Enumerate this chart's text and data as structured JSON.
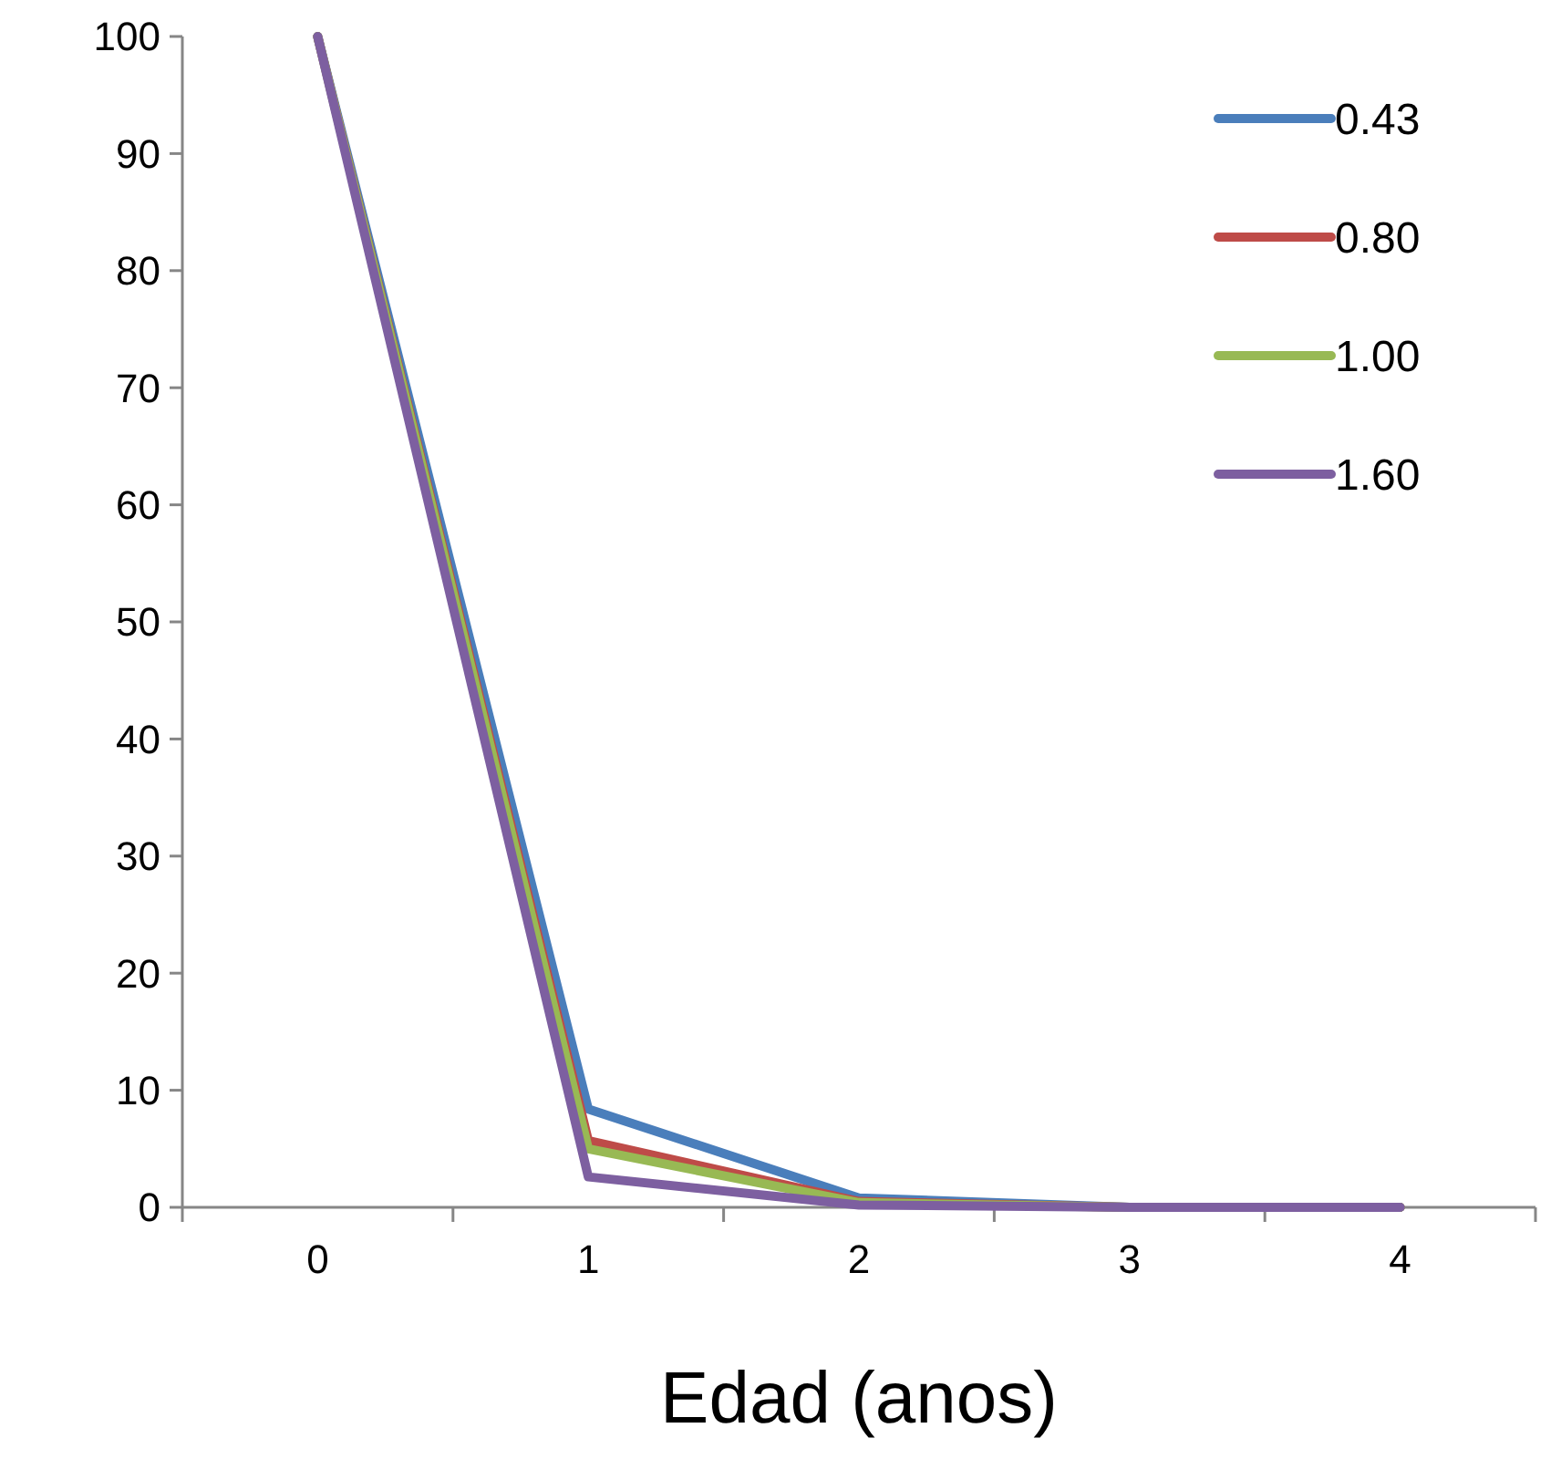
{
  "chart_data": {
    "type": "line",
    "xlabel": "Edad (anos)",
    "categories": [
      "0",
      "1",
      "2",
      "3",
      "4"
    ],
    "ylim": [
      0,
      100
    ],
    "yticks": [
      0,
      10,
      20,
      30,
      40,
      50,
      60,
      70,
      80,
      90,
      100
    ],
    "grid": false,
    "legend": "top right",
    "marker": "none",
    "line_style": "solid",
    "series": [
      {
        "name": "0.43",
        "color": "#4a7ebb",
        "values": [
          100,
          8.4,
          0.8,
          0,
          0
        ]
      },
      {
        "name": "0.80",
        "color": "#be4b48",
        "values": [
          100,
          5.7,
          0.5,
          0,
          0
        ]
      },
      {
        "name": "1.00",
        "color": "#98b954",
        "values": [
          100,
          5,
          0.4,
          0,
          0
        ]
      },
      {
        "name": "1.60",
        "color": "#7d5fa0",
        "values": [
          100,
          2.6,
          0.2,
          0,
          0
        ]
      }
    ]
  }
}
